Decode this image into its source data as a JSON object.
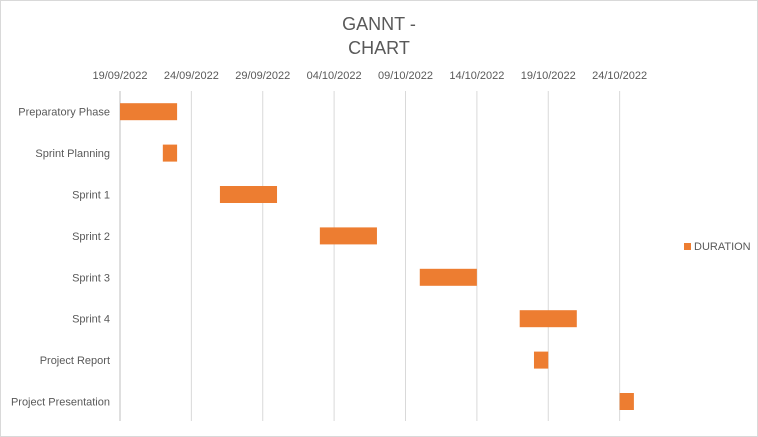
{
  "chart_data": {
    "type": "bar",
    "orientation": "horizontal",
    "title_lines": [
      "GANNT -",
      "CHART"
    ],
    "x_axis": {
      "type": "date",
      "min": "19/09/2022",
      "max": "29/10/2022",
      "tick_step_days": 5,
      "tick_labels": [
        "19/09/2022",
        "24/09/2022",
        "29/09/2022",
        "04/10/2022",
        "09/10/2022",
        "14/10/2022",
        "19/10/2022",
        "24/10/2022"
      ],
      "position": "top",
      "gridlines": true
    },
    "categories": [
      "Preparatory Phase",
      "Sprint Planning",
      "Sprint 1",
      "Sprint 2",
      "Sprint 3",
      "Sprint 4",
      "Project Report",
      "Project Presentation"
    ],
    "series": [
      {
        "name": "DURATION",
        "color": "#ED7D31",
        "start": [
          "19/09/2022",
          "22/09/2022",
          "26/09/2022",
          "03/10/2022",
          "10/10/2022",
          "17/10/2022",
          "18/10/2022",
          "24/10/2022"
        ],
        "duration_days": [
          4,
          1,
          4,
          4,
          4,
          4,
          1,
          1
        ]
      }
    ],
    "legend": {
      "position": "right",
      "entries": [
        "DURATION"
      ]
    }
  }
}
